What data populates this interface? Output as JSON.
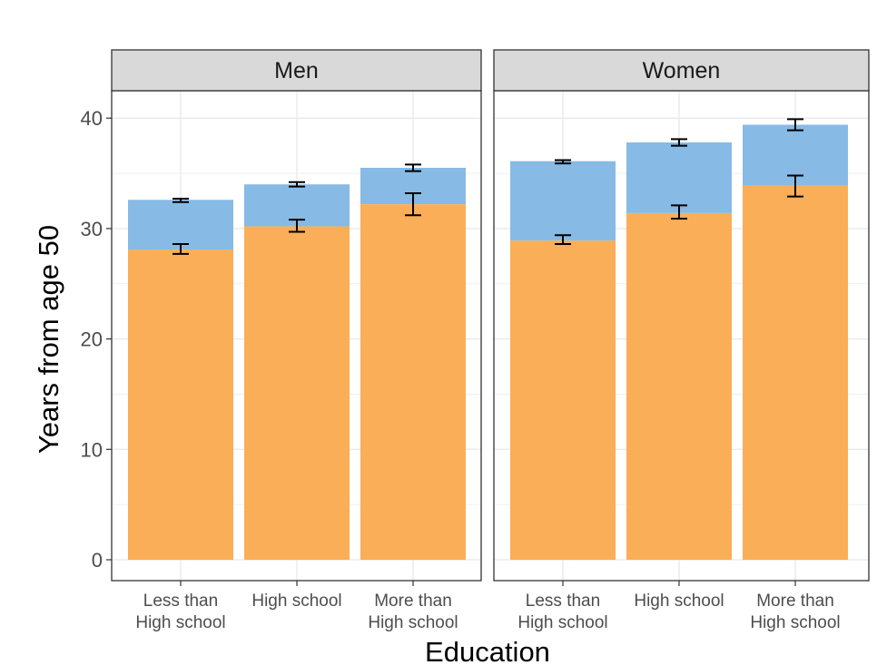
{
  "chart_data": {
    "type": "bar",
    "subtype": "stacked-with-error-bars",
    "xlabel": "Education",
    "ylabel": "Years from age 50",
    "ylim": [
      0,
      42
    ],
    "yticks": [
      0,
      10,
      20,
      30,
      40
    ],
    "grid": true,
    "categories": [
      [
        "Less than",
        "High school"
      ],
      [
        "High school"
      ],
      [
        "More than",
        "High school"
      ]
    ],
    "colors": {
      "lower": "#f9ae57",
      "upper": "#87bae5",
      "strip_fill": "#d9d9d9",
      "grid": "#ebebeb",
      "errorbar": "#000000"
    },
    "panels": [
      {
        "label": "Men",
        "bars": [
          {
            "lower": 28.1,
            "total": 32.6,
            "lower_ci": [
              27.7,
              28.6
            ],
            "total_ci": [
              32.4,
              32.7
            ]
          },
          {
            "lower": 30.2,
            "total": 34.0,
            "lower_ci": [
              29.7,
              30.8
            ],
            "total_ci": [
              33.8,
              34.2
            ]
          },
          {
            "lower": 32.2,
            "total": 35.5,
            "lower_ci": [
              31.2,
              33.2
            ],
            "total_ci": [
              35.2,
              35.8
            ]
          }
        ]
      },
      {
        "label": "Women",
        "bars": [
          {
            "lower": 28.9,
            "total": 36.1,
            "lower_ci": [
              28.6,
              29.4
            ],
            "total_ci": [
              35.9,
              36.2
            ]
          },
          {
            "lower": 31.4,
            "total": 37.8,
            "lower_ci": [
              30.9,
              32.1
            ],
            "total_ci": [
              37.5,
              38.1
            ]
          },
          {
            "lower": 33.9,
            "total": 39.4,
            "lower_ci": [
              32.9,
              34.8
            ],
            "total_ci": [
              38.9,
              39.9
            ]
          }
        ]
      }
    ]
  }
}
